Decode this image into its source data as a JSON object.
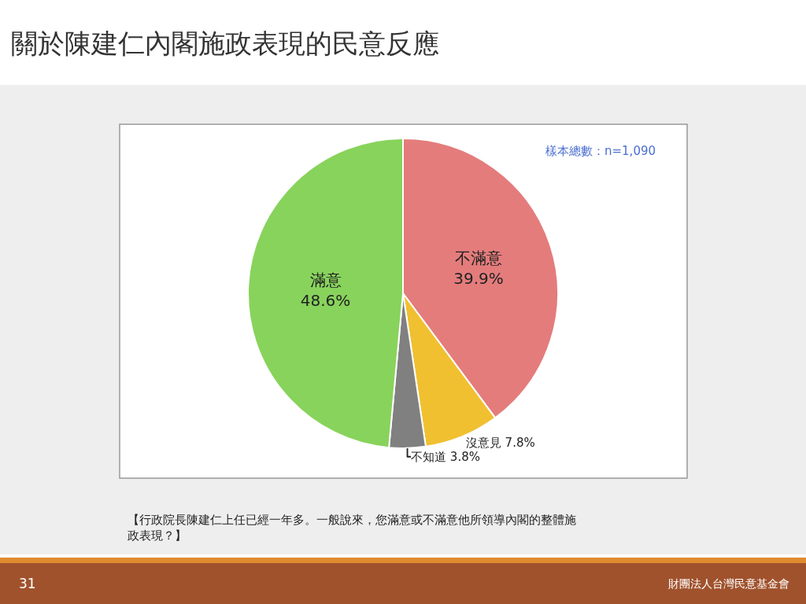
{
  "chart_data": {
    "type": "pie",
    "title": "關於陳建仁內閣施政表現的民意反應",
    "categories": [
      "不滿意",
      "沒意見",
      "不知道",
      "滿意"
    ],
    "values": [
      39.9,
      7.8,
      3.8,
      48.6
    ],
    "value_labels": [
      "39.9%",
      "7.8%",
      "3.8%",
      "48.6%"
    ],
    "colors": [
      "#e47c7c",
      "#f0c030",
      "#808080",
      "#88d35c"
    ],
    "legend": false,
    "annotations": [
      "樣本總數：n=1,090",
      "【行政院長陳建仁上任已經一年多。一般說來，您滿意或不滿意他所領導內閣的整體施政表現？】",
      "31",
      "財團法人台灣民意基金會"
    ]
  }
}
